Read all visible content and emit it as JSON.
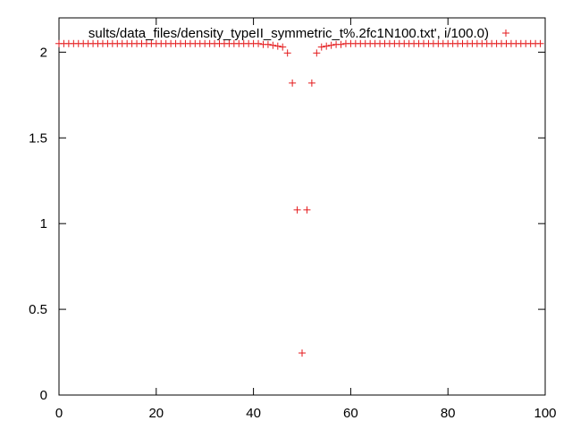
{
  "chart_data": {
    "type": "scatter",
    "xlim": [
      0,
      100
    ],
    "ylim": [
      0,
      2.2
    ],
    "x_ticks": [
      "0",
      "20",
      "40",
      "60",
      "80",
      "100"
    ],
    "y_ticks": [
      "0",
      "0.5",
      "1",
      "1.5",
      "2"
    ],
    "grid": false,
    "legend_position": "top-right",
    "series": [
      {
        "name": "sults/data_files/density_typeII_symmetric_t%.2fc1N100.txt', i/100.0)",
        "color": "#e41a1c",
        "marker": "plus",
        "x": [
          0,
          1,
          2,
          3,
          4,
          5,
          6,
          7,
          8,
          9,
          10,
          11,
          12,
          13,
          14,
          15,
          16,
          17,
          18,
          19,
          20,
          21,
          22,
          23,
          24,
          25,
          26,
          27,
          28,
          29,
          30,
          31,
          32,
          33,
          34,
          35,
          36,
          37,
          38,
          39,
          40,
          41,
          42,
          43,
          44,
          45,
          46,
          47,
          48,
          49,
          50,
          51,
          52,
          53,
          54,
          55,
          56,
          57,
          58,
          59,
          60,
          61,
          62,
          63,
          64,
          65,
          66,
          67,
          68,
          69,
          70,
          71,
          72,
          73,
          74,
          75,
          76,
          77,
          78,
          79,
          80,
          81,
          82,
          83,
          84,
          85,
          86,
          87,
          88,
          89,
          90,
          91,
          92,
          93,
          94,
          95,
          96,
          97,
          98,
          99
        ],
        "y": [
          2.05,
          2.05,
          2.05,
          2.05,
          2.05,
          2.05,
          2.05,
          2.05,
          2.05,
          2.05,
          2.05,
          2.05,
          2.05,
          2.05,
          2.05,
          2.05,
          2.05,
          2.05,
          2.05,
          2.05,
          2.05,
          2.05,
          2.05,
          2.05,
          2.05,
          2.05,
          2.05,
          2.05,
          2.05,
          2.05,
          2.05,
          2.05,
          2.05,
          2.05,
          2.05,
          2.05,
          2.05,
          2.05,
          2.05,
          2.05,
          2.05,
          2.05,
          2.045,
          2.045,
          2.04,
          2.035,
          2.03,
          1.995,
          1.82,
          1.08,
          0.245,
          1.08,
          1.82,
          1.995,
          2.03,
          2.035,
          2.04,
          2.045,
          2.045,
          2.05,
          2.05,
          2.05,
          2.05,
          2.05,
          2.05,
          2.05,
          2.05,
          2.05,
          2.05,
          2.05,
          2.05,
          2.05,
          2.05,
          2.05,
          2.05,
          2.05,
          2.05,
          2.05,
          2.05,
          2.05,
          2.05,
          2.05,
          2.05,
          2.05,
          2.05,
          2.05,
          2.05,
          2.05,
          2.05,
          2.05,
          2.05,
          2.05,
          2.05,
          2.05,
          2.05,
          2.05,
          2.05,
          2.05,
          2.05,
          2.05
        ]
      }
    ]
  }
}
